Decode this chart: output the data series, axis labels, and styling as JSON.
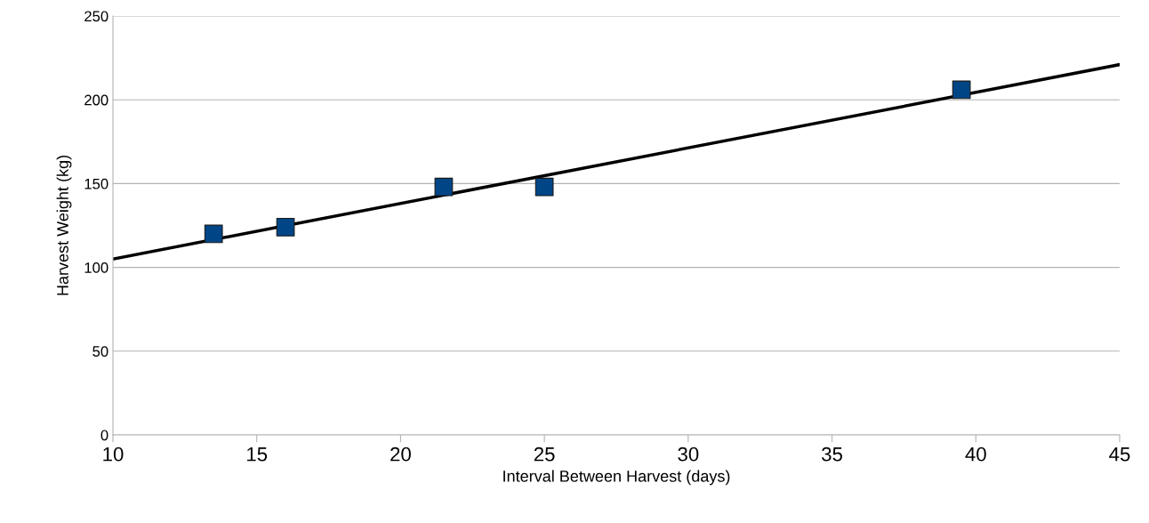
{
  "chart_data": {
    "type": "scatter",
    "xlabel": "Interval Between Harvest (days)",
    "ylabel": "Harvest Weight (kg)",
    "xlim": [
      10,
      45
    ],
    "xticks": [
      10,
      15,
      20,
      25,
      30,
      35,
      40,
      45
    ],
    "ylim": [
      0,
      250
    ],
    "yticks": [
      0,
      50,
      100,
      150,
      200,
      250
    ],
    "grid": "y",
    "legend": false,
    "series": [
      {
        "marker": "square",
        "color": "#004586",
        "x": [
          13.5,
          16,
          21.5,
          25,
          39.5
        ],
        "values": [
          120,
          124,
          148,
          148,
          206
        ]
      },
      {
        "type": "line",
        "color": "#000000",
        "x": [
          10,
          45
        ],
        "values": [
          105,
          221
        ],
        "line_style": "solid",
        "marker": "none"
      }
    ]
  }
}
